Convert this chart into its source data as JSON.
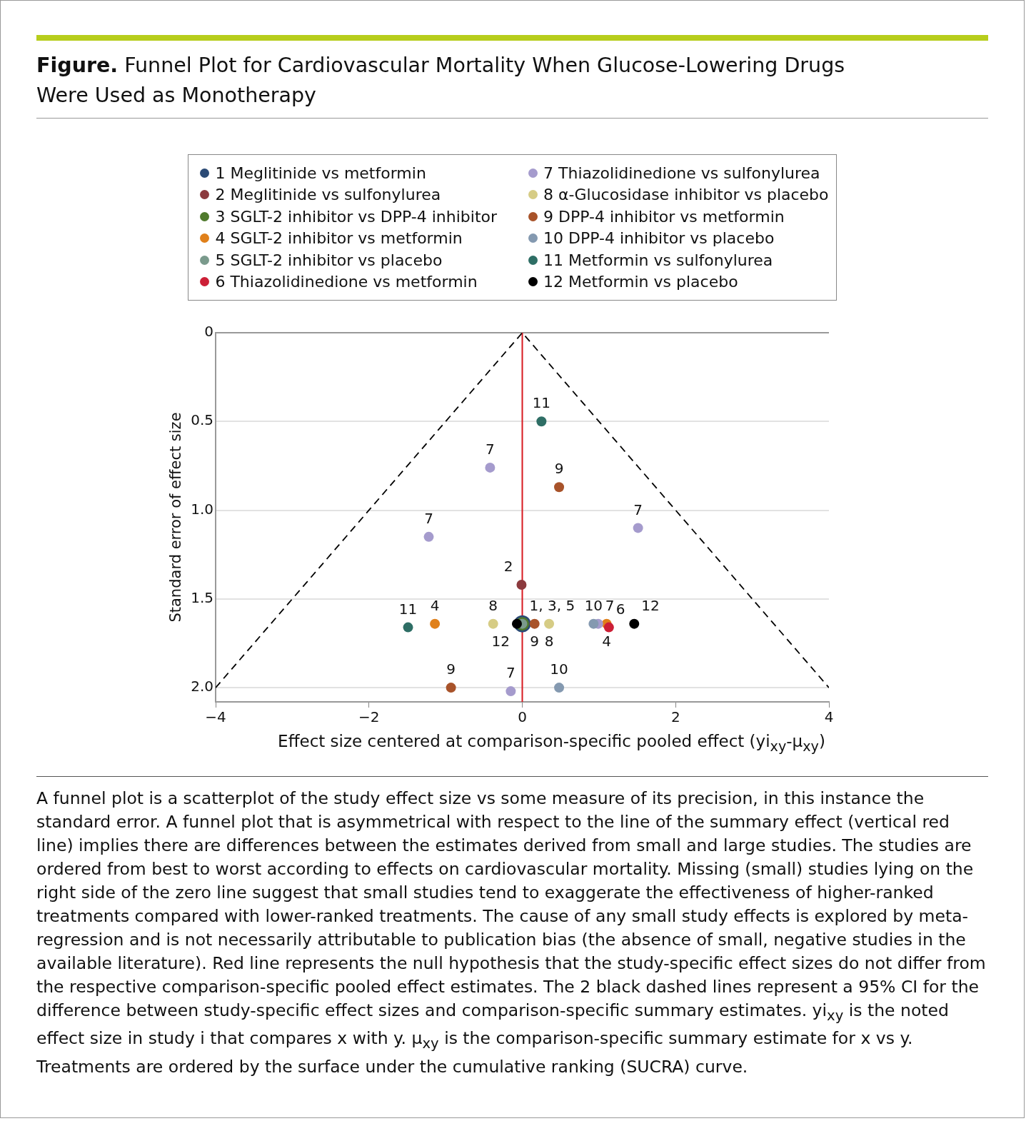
{
  "chart_data": {
    "type": "scatter",
    "title": "Figure. Funnel Plot for Cardiovascular Mortality When Glucose-Lowering Drugs Were Used as Monotherapy",
    "xlabel": "Effect size centered at comparison-specific pooled effect (yi$_{xy}$-μ$_{xy}$)",
    "ylabel": "Standard error of effect size",
    "xlim": [
      -4,
      4
    ],
    "xticks": [
      {
        "value": -4,
        "label": "−4"
      },
      {
        "value": -2,
        "label": "−2"
      },
      0,
      2,
      4
    ],
    "ylim": [
      2.08,
      0
    ],
    "yticks": [
      0,
      0.5,
      {
        "value": 1,
        "label": "1.0"
      },
      1.5,
      {
        "value": 2,
        "label": "2.0"
      }
    ],
    "grid": "y",
    "legend": "top",
    "marker": "circle",
    "series": [
      {
        "name": "1 Meglitinide vs metformin",
        "color": "#2b4a75",
        "x": [
          0
        ],
        "values": [
          1.64
        ]
      },
      {
        "name": "2 Meglitinide vs sulfonylurea",
        "color": "#8c3a3e",
        "x": [
          -0.01
        ],
        "values": [
          1.42
        ]
      },
      {
        "name": "3 SGLT-2 inhibitor vs DPP-4 inhibitor",
        "color": "#4f7a2c",
        "x": [
          0
        ],
        "values": [
          1.64
        ]
      },
      {
        "name": "4 SGLT-2 inhibitor vs metformin",
        "color": "#e0801a",
        "x": [
          -1.14,
          1.1
        ],
        "values": [
          1.64,
          1.64
        ]
      },
      {
        "name": "5 SGLT-2 inhibitor vs placebo",
        "color": "#7a9a8c",
        "x": [
          0
        ],
        "values": [
          1.64
        ]
      },
      {
        "name": "6 Thiazolidinedione vs metformin",
        "color": "#cc1f36",
        "x": [
          1.13
        ],
        "values": [
          1.66
        ]
      },
      {
        "name": "7 Thiazolidinedione vs sulfonylurea",
        "color": "#a59bcd",
        "x": [
          -0.42,
          1.51,
          -1.22,
          0.99,
          -0.15
        ],
        "values": [
          0.76,
          1.1,
          1.15,
          1.64,
          2.02
        ]
      },
      {
        "name": "8 α-Glucosidase inhibitor vs placebo",
        "color": "#d6cc85",
        "x": [
          -0.38,
          0.35
        ],
        "values": [
          1.64,
          1.64
        ]
      },
      {
        "name": "9 DPP-4 inhibitor vs metformin",
        "color": "#a8532a",
        "x": [
          0.48,
          0.16,
          -0.93
        ],
        "values": [
          0.87,
          1.64,
          2.0
        ]
      },
      {
        "name": "10 DPP-4 inhibitor vs placebo",
        "color": "#8499b0",
        "x": [
          0.93,
          0.48
        ],
        "values": [
          1.64,
          2.0
        ]
      },
      {
        "name": "11 Metformin vs sulfonylurea",
        "color": "#2e6e65",
        "x": [
          0.25,
          -1.49
        ],
        "values": [
          0.5,
          1.66
        ]
      },
      {
        "name": "12 Metformin vs placebo",
        "color": "#000000",
        "x": [
          -0.07,
          1.46
        ],
        "values": [
          1.64,
          1.64
        ]
      },
      {
        "type": "line",
        "color": "#000000",
        "line_style": "dashed",
        "marker": "none",
        "x": [
          -4,
          0,
          4
        ],
        "values": [
          2,
          0,
          2
        ]
      }
    ],
    "ref_lines": [
      {
        "axis": "x",
        "value": 0,
        "color": "#d71920"
      }
    ],
    "annotations": [
      {
        "text": "11",
        "x": 0.25,
        "y": 0.5
      },
      {
        "text": "7",
        "x": -0.42,
        "y": 0.76
      },
      {
        "text": "9",
        "x": 0.48,
        "y": 0.87
      },
      {
        "text": "7",
        "x": 1.51,
        "y": 1.1
      },
      {
        "text": "7",
        "x": -1.22,
        "y": 1.15
      },
      {
        "text": "2",
        "x": -0.01,
        "y": 1.42
      },
      {
        "text": "11",
        "x": -1.49,
        "y": 1.66
      },
      {
        "text": "4",
        "x": -1.14,
        "y": 1.64
      },
      {
        "text": "8",
        "x": -0.38,
        "y": 1.64
      },
      {
        "text": "12",
        "x": -0.07,
        "y": 1.64
      },
      {
        "text": "1, 3, 5",
        "x": 0,
        "y": 1.64
      },
      {
        "text": "9",
        "x": 0.16,
        "y": 1.64
      },
      {
        "text": "8",
        "x": 0.35,
        "y": 1.64
      },
      {
        "text": "10",
        "x": 0.93,
        "y": 1.64
      },
      {
        "text": "7",
        "x": 0.99,
        "y": 1.64
      },
      {
        "text": "4",
        "x": 1.1,
        "y": 1.64
      },
      {
        "text": "6",
        "x": 1.13,
        "y": 1.66
      },
      {
        "text": "12",
        "x": 1.46,
        "y": 1.64
      },
      {
        "text": "9",
        "x": -0.93,
        "y": 2.0
      },
      {
        "text": "7",
        "x": -0.15,
        "y": 2.02
      },
      {
        "text": "10",
        "x": 0.48,
        "y": 2.0
      },
      "A funnel plot is a scatterplot of the study effect size vs some measure of its precision, in this instance the standard error. A funnel plot that is asymmetrical with respect to the line of the summary effect (vertical red line) implies there are differences between the estimates derived from small and large studies. The studies are ordered from best to worst according to effects on cardiovascular mortality. Missing (small) studies lying on the right side of the zero line suggest that small studies tend to exaggerate the effectiveness of higher-ranked treatments compared with lower-ranked treatments. The cause of any small study effects is explored by meta-regression and is not necessarily attributable to publication bias (the absence of small, negative studies in the available literature). Red line represents the null hypothesis that the study-specific effect sizes do not differ from the respective comparison-specific pooled effect estimates. The 2 black dashed lines represent a 95% CI for the difference between study-specific effect sizes and comparison-specific summary estimates. yi$_{xy}$ is the noted effect size in study i that compares x with y. μ$_{xy}$ is the comparison-specific summary estimate for x vs y. Treatments are ordered by the surface under the cumulative ranking (SUCRA) curve."
    ]
  }
}
